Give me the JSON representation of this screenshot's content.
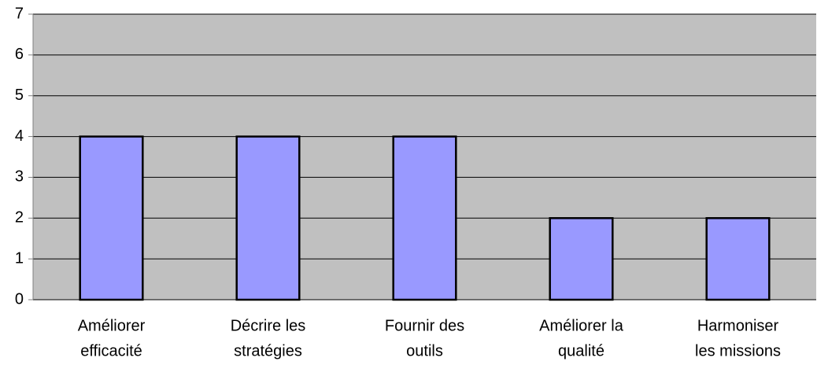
{
  "chart_data": {
    "type": "bar",
    "categories": [
      [
        "Améliorer",
        "efficacité"
      ],
      [
        "Décrire les",
        "stratégies"
      ],
      [
        "Fournir des",
        "outils"
      ],
      [
        "Améliorer la",
        "qualité"
      ],
      [
        "Harmoniser",
        "les missions"
      ]
    ],
    "values": [
      4,
      4,
      4,
      2,
      2
    ],
    "color": "#9999ff",
    "ylim": [
      0,
      7
    ],
    "yticks": [
      0,
      1,
      2,
      3,
      4,
      5,
      6,
      7
    ],
    "grid": true
  }
}
